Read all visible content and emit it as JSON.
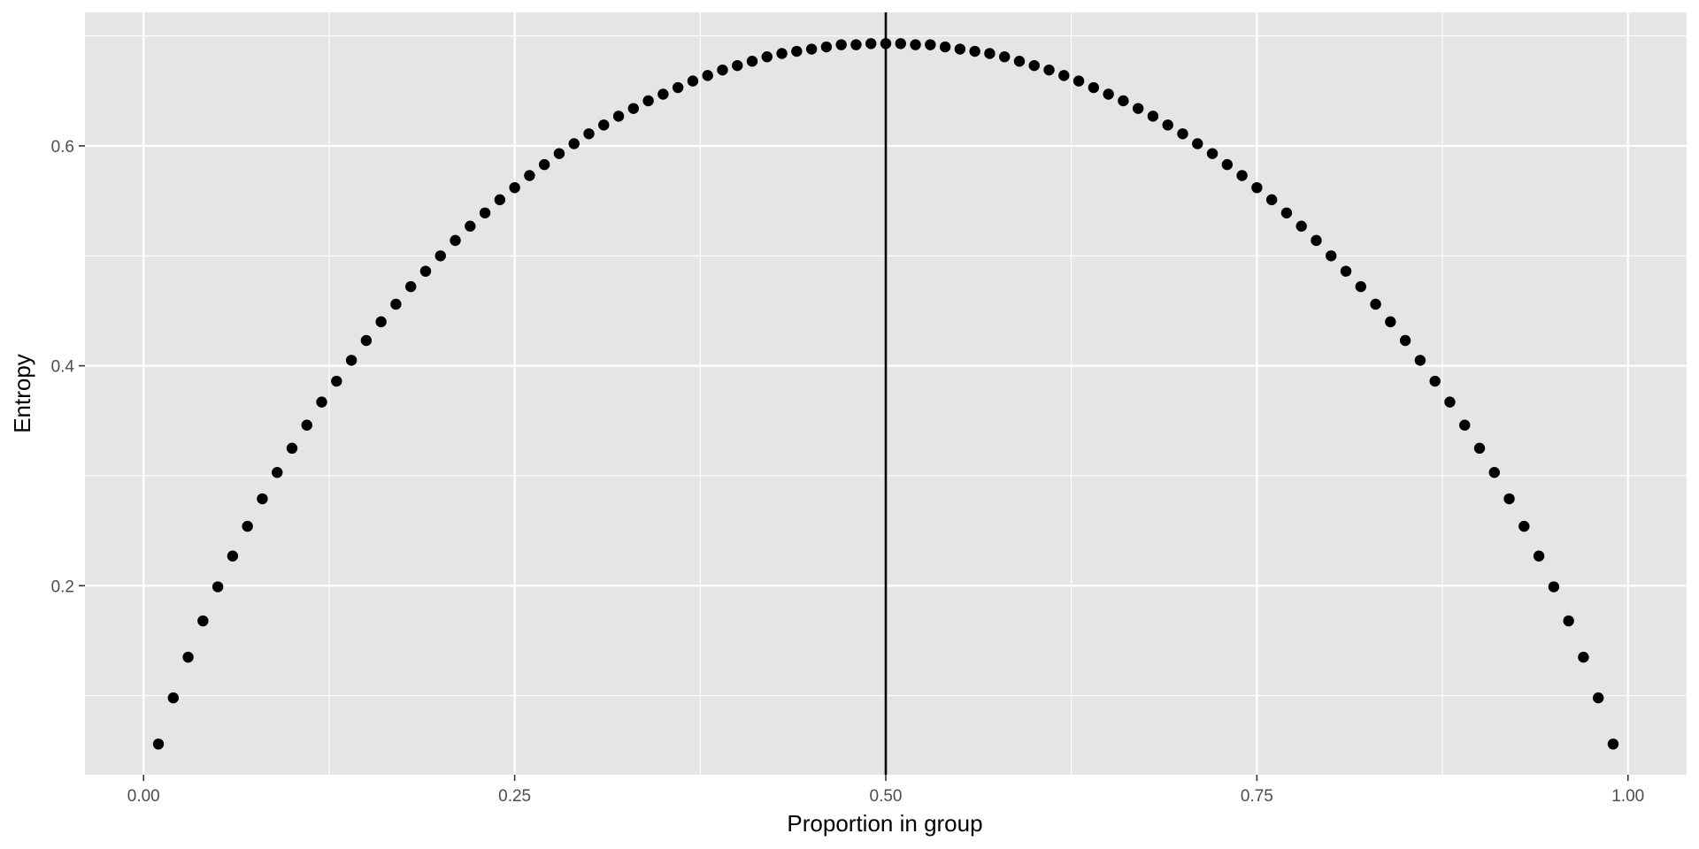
{
  "chart_data": {
    "type": "scatter",
    "title": "",
    "xlabel": "Proportion in group",
    "ylabel": "Entropy",
    "xlim": [
      -0.0395,
      1.0395
    ],
    "ylim": [
      0.0281,
      0.7214
    ],
    "x_ticks": [
      0.0,
      0.25,
      0.5,
      0.75,
      1.0
    ],
    "x_tick_labels": [
      "0.00",
      "0.25",
      "0.50",
      "0.75",
      "1.00"
    ],
    "x_minor_ticks": [
      0.125,
      0.375,
      0.625,
      0.875
    ],
    "y_ticks": [
      0.2,
      0.4,
      0.6
    ],
    "y_tick_labels": [
      "0.2",
      "0.4",
      "0.6"
    ],
    "y_minor_ticks": [
      0.1,
      0.3,
      0.5,
      0.7
    ],
    "grid": true,
    "vline": 0.5,
    "series": [
      {
        "x": [
          0.01,
          0.02,
          0.03,
          0.04,
          0.05,
          0.06,
          0.07,
          0.08,
          0.09,
          0.1,
          0.11,
          0.12,
          0.13,
          0.14,
          0.15,
          0.16,
          0.17,
          0.18,
          0.19,
          0.2,
          0.21,
          0.22,
          0.23,
          0.24,
          0.25,
          0.26,
          0.27,
          0.28,
          0.29,
          0.3,
          0.31,
          0.32,
          0.33,
          0.34,
          0.35,
          0.36,
          0.37,
          0.38,
          0.39,
          0.4,
          0.41,
          0.42,
          0.43,
          0.44,
          0.45,
          0.46,
          0.47,
          0.48,
          0.49,
          0.5,
          0.51,
          0.52,
          0.53,
          0.54,
          0.55,
          0.56,
          0.57,
          0.58,
          0.59,
          0.6,
          0.61,
          0.62,
          0.63,
          0.64,
          0.65,
          0.66,
          0.67,
          0.68,
          0.69,
          0.7,
          0.71,
          0.72,
          0.73,
          0.74,
          0.75,
          0.76,
          0.77,
          0.78,
          0.79,
          0.8,
          0.81,
          0.82,
          0.83,
          0.84,
          0.85,
          0.86,
          0.87,
          0.88,
          0.89,
          0.9,
          0.91,
          0.92,
          0.93,
          0.94,
          0.95,
          0.96,
          0.97,
          0.98,
          0.99
        ],
        "y": [
          0.056,
          0.098,
          0.135,
          0.168,
          0.199,
          0.227,
          0.254,
          0.279,
          0.303,
          0.325,
          0.346,
          0.367,
          0.386,
          0.405,
          0.423,
          0.44,
          0.456,
          0.472,
          0.486,
          0.5,
          0.514,
          0.527,
          0.539,
          0.551,
          0.562,
          0.573,
          0.583,
          0.593,
          0.602,
          0.611,
          0.619,
          0.627,
          0.634,
          0.641,
          0.647,
          0.653,
          0.659,
          0.664,
          0.669,
          0.673,
          0.677,
          0.681,
          0.684,
          0.686,
          0.688,
          0.69,
          0.692,
          0.692,
          0.693,
          0.693,
          0.693,
          0.692,
          0.692,
          0.69,
          0.688,
          0.686,
          0.684,
          0.681,
          0.677,
          0.673,
          0.669,
          0.664,
          0.659,
          0.653,
          0.647,
          0.641,
          0.634,
          0.627,
          0.619,
          0.611,
          0.602,
          0.593,
          0.583,
          0.573,
          0.562,
          0.551,
          0.539,
          0.527,
          0.514,
          0.5,
          0.486,
          0.472,
          0.456,
          0.44,
          0.423,
          0.405,
          0.386,
          0.367,
          0.346,
          0.325,
          0.303,
          0.279,
          0.254,
          0.227,
          0.199,
          0.168,
          0.135,
          0.098,
          0.056
        ],
        "color": "#000000"
      }
    ]
  }
}
